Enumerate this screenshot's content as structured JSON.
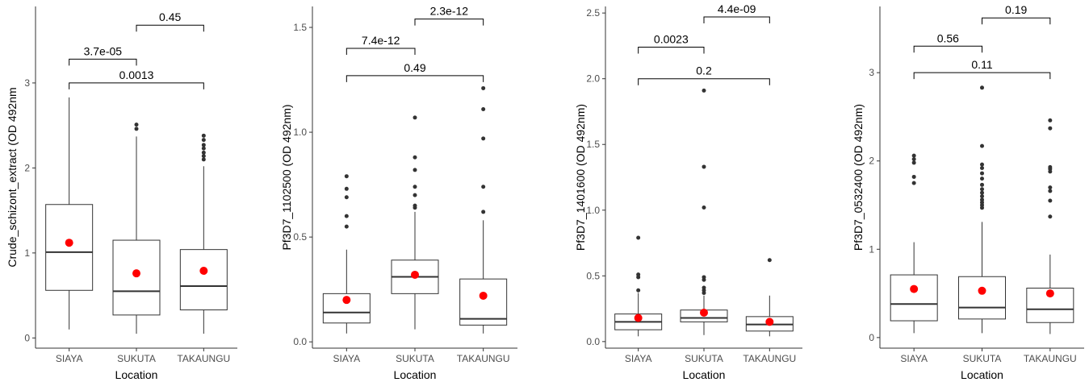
{
  "colors": {
    "axis": "#333333",
    "box": "#333333",
    "mean": "#ff0000",
    "outlier": "#333333",
    "text": "#000000",
    "tick": "#4d4d4d"
  },
  "chart_data": [
    {
      "type": "boxplot",
      "xlabel": "Location",
      "ylabel": "Crude_schizont_extract (OD 492nm",
      "categories": [
        "SIAYA",
        "SUKUTA",
        "TAKAUNGU"
      ],
      "ylim": [
        -0.12,
        3.9
      ],
      "yticks": [
        0,
        1,
        2,
        3
      ],
      "yticklabels": [
        "0",
        "1",
        "2",
        "3"
      ],
      "boxes": [
        {
          "min": 0.1,
          "q1": 0.56,
          "median": 1.01,
          "q3": 1.57,
          "max": 2.83,
          "mean": 1.12,
          "outliers": []
        },
        {
          "min": 0.05,
          "q1": 0.27,
          "median": 0.55,
          "q3": 1.15,
          "max": 2.37,
          "mean": 0.76,
          "outliers": [
            2.46,
            2.51
          ]
        },
        {
          "min": 0.05,
          "q1": 0.33,
          "median": 0.61,
          "q3": 1.04,
          "max": 2.02,
          "mean": 0.79,
          "outliers": [
            2.1,
            2.14,
            2.18,
            2.23,
            2.27,
            2.33,
            2.38
          ]
        }
      ],
      "comparisons": [
        {
          "from": 0,
          "to": 1,
          "y": 3.28,
          "label": "3.7e-05"
        },
        {
          "from": 1,
          "to": 2,
          "y": 3.68,
          "label": "0.45"
        },
        {
          "from": 0,
          "to": 2,
          "y": 3.0,
          "label": "0.0013"
        }
      ]
    },
    {
      "type": "boxplot",
      "xlabel": "Location",
      "ylabel": "Pf3D7_1102500 (OD 492nm)",
      "categories": [
        "SIAYA",
        "SUKUTA",
        "TAKAUNGU"
      ],
      "ylim": [
        -0.03,
        1.6
      ],
      "yticks": [
        0,
        0.5,
        1,
        1.5
      ],
      "yticklabels": [
        "0.0",
        "0.5",
        "1.0",
        "1.5"
      ],
      "boxes": [
        {
          "min": 0.04,
          "q1": 0.09,
          "median": 0.14,
          "q3": 0.23,
          "max": 0.44,
          "mean": 0.2,
          "outliers": [
            0.55,
            0.6,
            0.69,
            0.73,
            0.79
          ]
        },
        {
          "min": 0.06,
          "q1": 0.23,
          "median": 0.31,
          "q3": 0.39,
          "max": 0.62,
          "mean": 0.32,
          "outliers": [
            0.64,
            0.65,
            0.7,
            0.74,
            0.82,
            0.88,
            1.07
          ]
        },
        {
          "min": 0.04,
          "q1": 0.08,
          "median": 0.11,
          "q3": 0.3,
          "max": 0.58,
          "mean": 0.22,
          "outliers": [
            0.62,
            0.74,
            0.97,
            1.11,
            1.21
          ]
        }
      ],
      "comparisons": [
        {
          "from": 0,
          "to": 1,
          "y": 1.4,
          "label": "7.4e-12"
        },
        {
          "from": 1,
          "to": 2,
          "y": 1.54,
          "label": "2.3e-12"
        },
        {
          "from": 0,
          "to": 2,
          "y": 1.27,
          "label": "0.49"
        }
      ]
    },
    {
      "type": "boxplot",
      "xlabel": "Location",
      "ylabel": "Pf3D7_1401600 (OD 492nm)",
      "categories": [
        "SIAYA",
        "SUKUTA",
        "TAKAUNGU"
      ],
      "ylim": [
        -0.05,
        2.55
      ],
      "yticks": [
        0,
        0.5,
        1,
        1.5,
        2,
        2.5
      ],
      "yticklabels": [
        "0.0",
        "0.5",
        "1.0",
        "1.5",
        "2.0",
        "2.5"
      ],
      "boxes": [
        {
          "min": 0.04,
          "q1": 0.09,
          "median": 0.15,
          "q3": 0.21,
          "max": 0.37,
          "mean": 0.18,
          "outliers": [
            0.39,
            0.49,
            0.51,
            0.79
          ]
        },
        {
          "min": 0.05,
          "q1": 0.15,
          "median": 0.18,
          "q3": 0.24,
          "max": 0.35,
          "mean": 0.22,
          "outliers": [
            0.37,
            0.39,
            0.41,
            0.47,
            0.49,
            1.02,
            1.33,
            1.91
          ]
        },
        {
          "min": 0.04,
          "q1": 0.08,
          "median": 0.13,
          "q3": 0.19,
          "max": 0.35,
          "mean": 0.15,
          "outliers": [
            0.62
          ]
        }
      ],
      "comparisons": [
        {
          "from": 0,
          "to": 1,
          "y": 2.24,
          "label": "0.0023"
        },
        {
          "from": 1,
          "to": 2,
          "y": 2.47,
          "label": "4.4e-09"
        },
        {
          "from": 0,
          "to": 2,
          "y": 2.0,
          "label": "0.2"
        }
      ]
    },
    {
      "type": "boxplot",
      "xlabel": "Location",
      "ylabel": "Pf3D7_0532400 (OD 492nm)",
      "categories": [
        "SIAYA",
        "SUKUTA",
        "TAKAUNGU"
      ],
      "ylim": [
        -0.12,
        3.75
      ],
      "yticks": [
        0,
        1,
        2,
        3
      ],
      "yticklabels": [
        "0",
        "1",
        "2",
        "3"
      ],
      "boxes": [
        {
          "min": 0.05,
          "q1": 0.19,
          "median": 0.38,
          "q3": 0.71,
          "max": 1.08,
          "mean": 0.55,
          "outliers": [
            1.75,
            1.82,
            1.98,
            2.02,
            2.06
          ]
        },
        {
          "min": 0.05,
          "q1": 0.21,
          "median": 0.34,
          "q3": 0.69,
          "max": 1.31,
          "mean": 0.53,
          "outliers": [
            1.47,
            1.5,
            1.53,
            1.56,
            1.6,
            1.64,
            1.68,
            1.73,
            1.8,
            1.86,
            1.92,
            1.96,
            2.17,
            2.83
          ]
        },
        {
          "min": 0.04,
          "q1": 0.17,
          "median": 0.32,
          "q3": 0.56,
          "max": 0.94,
          "mean": 0.5,
          "outliers": [
            1.37,
            1.55,
            1.66,
            1.7,
            1.88,
            1.91,
            1.93,
            2.37,
            2.46
          ]
        }
      ],
      "comparisons": [
        {
          "from": 0,
          "to": 1,
          "y": 3.3,
          "label": "0.56"
        },
        {
          "from": 1,
          "to": 2,
          "y": 3.62,
          "label": "0.19"
        },
        {
          "from": 0,
          "to": 2,
          "y": 3.0,
          "label": "0.11"
        }
      ]
    }
  ]
}
